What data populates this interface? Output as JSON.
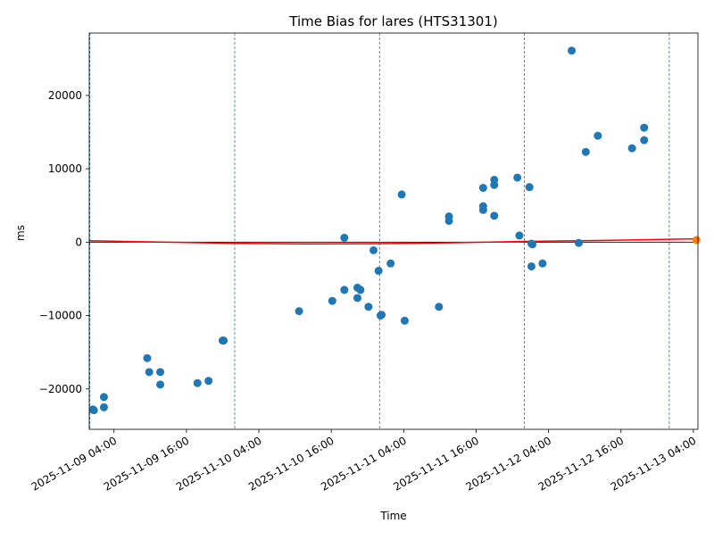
{
  "chart_data": {
    "type": "scatter",
    "title": "Time Bias for lares (HTS31301)",
    "xlabel": "Time",
    "ylabel": "ms",
    "x_ticks": [
      "2025-11-09 04:00",
      "2025-11-09 16:00",
      "2025-11-10 04:00",
      "2025-11-10 16:00",
      "2025-11-11 04:00",
      "2025-11-11 16:00",
      "2025-11-12 04:00",
      "2025-11-12 16:00",
      "2025-11-13 04:00"
    ],
    "y_ticks": [
      -20000,
      -10000,
      0,
      10000,
      20000
    ],
    "xlim": [
      "2025-11-08T23:54",
      "2025-11-13T04:45"
    ],
    "ylim": [
      -25500,
      28500
    ],
    "grid": false,
    "vlines": [
      "2025-11-09T00:00",
      "2025-11-10T00:00",
      "2025-11-11T00:00",
      "2025-11-12T00:00",
      "2025-11-13T00:00"
    ],
    "zero_line": 0,
    "colors": {
      "points": "#1f77b4",
      "fit": "#ff0000",
      "latest_point": "#ff7f0e",
      "vlines": "#1f77b4"
    },
    "series": [
      {
        "values": [
          {
            "x": "2025-11-09T00:30",
            "y": -22800
          },
          {
            "x": "2025-11-09T00:40",
            "y": -22900
          },
          {
            "x": "2025-11-09T02:20",
            "y": -21100
          },
          {
            "x": "2025-11-09T02:20",
            "y": -22500
          },
          {
            "x": "2025-11-09T09:30",
            "y": -15800
          },
          {
            "x": "2025-11-09T09:50",
            "y": -17700
          },
          {
            "x": "2025-11-09T11:40",
            "y": -17700
          },
          {
            "x": "2025-11-09T11:40",
            "y": -19400
          },
          {
            "x": "2025-11-09T17:50",
            "y": -19200
          },
          {
            "x": "2025-11-09T19:40",
            "y": -18900
          },
          {
            "x": "2025-11-09T22:00",
            "y": -13400
          },
          {
            "x": "2025-11-09T22:10",
            "y": -13400
          },
          {
            "x": "2025-11-10T10:40",
            "y": -9400
          },
          {
            "x": "2025-11-10T16:10",
            "y": -8000
          },
          {
            "x": "2025-11-10T18:10",
            "y": 600
          },
          {
            "x": "2025-11-10T18:10",
            "y": -6500
          },
          {
            "x": "2025-11-10T20:20",
            "y": -6200
          },
          {
            "x": "2025-11-10T20:20",
            "y": -7600
          },
          {
            "x": "2025-11-10T20:50",
            "y": -6500
          },
          {
            "x": "2025-11-10T22:10",
            "y": -8800
          },
          {
            "x": "2025-11-10T23:00",
            "y": -1100
          },
          {
            "x": "2025-11-10T23:50",
            "y": -3900
          },
          {
            "x": "2025-11-11T00:10",
            "y": -10000
          },
          {
            "x": "2025-11-11T00:20",
            "y": -9900
          },
          {
            "x": "2025-11-11T01:50",
            "y": -2900
          },
          {
            "x": "2025-11-11T03:40",
            "y": 6500
          },
          {
            "x": "2025-11-11T04:10",
            "y": -10700
          },
          {
            "x": "2025-11-11T09:50",
            "y": -8800
          },
          {
            "x": "2025-11-11T11:30",
            "y": 3500
          },
          {
            "x": "2025-11-11T11:30",
            "y": 2900
          },
          {
            "x": "2025-11-11T17:10",
            "y": 7400
          },
          {
            "x": "2025-11-11T17:10",
            "y": 4900
          },
          {
            "x": "2025-11-11T17:10",
            "y": 4400
          },
          {
            "x": "2025-11-11T19:00",
            "y": 8500
          },
          {
            "x": "2025-11-11T19:00",
            "y": 7800
          },
          {
            "x": "2025-11-11T19:00",
            "y": 3600
          },
          {
            "x": "2025-11-11T22:50",
            "y": 8800
          },
          {
            "x": "2025-11-11T23:10",
            "y": 900
          },
          {
            "x": "2025-11-12T00:50",
            "y": 7500
          },
          {
            "x": "2025-11-12T01:10",
            "y": -200
          },
          {
            "x": "2025-11-12T01:20",
            "y": -300
          },
          {
            "x": "2025-11-12T01:10",
            "y": -3300
          },
          {
            "x": "2025-11-12T03:00",
            "y": -2900
          },
          {
            "x": "2025-11-12T07:50",
            "y": 26100
          },
          {
            "x": "2025-11-12T09:00",
            "y": -100
          },
          {
            "x": "2025-11-12T10:10",
            "y": 12300
          },
          {
            "x": "2025-11-12T12:10",
            "y": 14500
          },
          {
            "x": "2025-11-12T17:50",
            "y": 12800
          },
          {
            "x": "2025-11-12T19:50",
            "y": 15600
          },
          {
            "x": "2025-11-12T19:50",
            "y": 13900
          }
        ]
      },
      {
        "values": [
          {
            "x": "2025-11-13T04:30",
            "y": 300
          }
        ]
      }
    ],
    "fit_line": [
      {
        "x": "2025-11-08T23:54",
        "y": 200
      },
      {
        "x": "2025-11-09T12:00",
        "y": 0
      },
      {
        "x": "2025-11-10T00:00",
        "y": -150
      },
      {
        "x": "2025-11-10T12:00",
        "y": -230
      },
      {
        "x": "2025-11-11T00:00",
        "y": -200
      },
      {
        "x": "2025-11-11T12:00",
        "y": -80
      },
      {
        "x": "2025-11-12T00:00",
        "y": 100
      },
      {
        "x": "2025-11-12T12:00",
        "y": 220
      },
      {
        "x": "2025-11-13T04:30",
        "y": 450
      }
    ]
  }
}
